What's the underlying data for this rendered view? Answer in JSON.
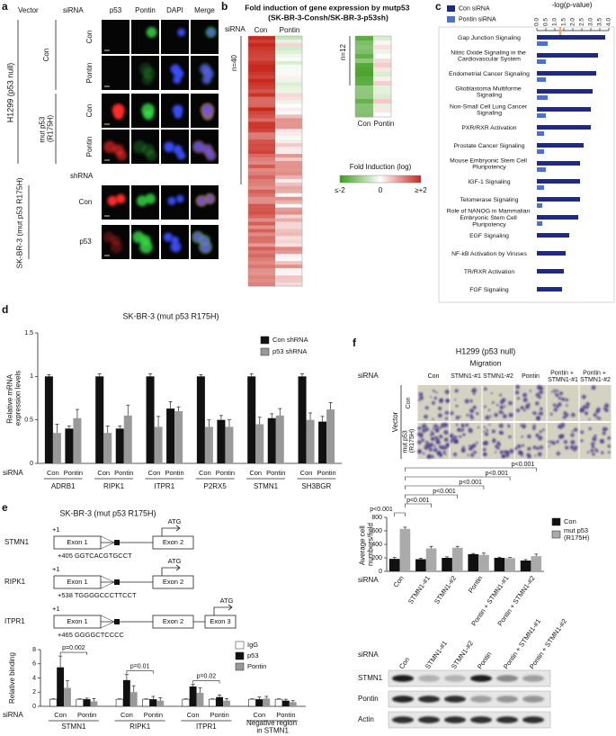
{
  "panel_a": {
    "letter": "a",
    "vector_label": "Vector",
    "sirna_label": "siRNA",
    "stains": [
      "p53",
      "Pontin",
      "DAPI",
      "Merge"
    ],
    "h1299": {
      "label": "H1299 (p53 null)",
      "vectors": [
        "Con",
        "mut p53 (R175H)"
      ],
      "sirna": [
        "Con",
        "Pontin",
        "Con",
        "Pontin"
      ]
    },
    "skbr3": {
      "label": "SK-BR-3 (mut p53 R175H)",
      "shrna_label": "shRNA",
      "shrna": [
        "Con",
        "p53"
      ]
    }
  },
  "panel_b": {
    "letter": "b",
    "title": "Fold induction of gene expression by mutp53 (SK-BR-3-Consh/SK-BR-3-p53sh)",
    "sirna_label": "siRNA",
    "columns": [
      "Con",
      "Pontin"
    ],
    "up_count": "n=40",
    "down_count": "n=12",
    "legend_title": "Fold Induction (log)",
    "legend_labels": [
      "≤-2",
      "0",
      "≥+2"
    ]
  },
  "chart_data": [
    {
      "type": "hbar",
      "letter": "c",
      "axis_title": "-log(p-value)",
      "categories": [
        "Gap Junction Signaling",
        "Nitric Oxide Signaling in the Cardiovascular System",
        "Endometrial Cancer Signaling",
        "Glioblastoma Multiforme Signaling",
        "Non-Small Cell Lung Cancer Signaling",
        "PXR/RXR Activation",
        "Prostate Cancer Signaling",
        "Mouse Embryonic Stem Cell Pluripotency",
        "IGF-1 Signaling",
        "Telomerase Signaling",
        "Role of NANOG in Mammalian Embryonic Stem Cell Pluripotency",
        "EGF Signaling",
        "NF-kB Activation by Viruses",
        "TR/RXR Activation",
        "FGF Signaling"
      ],
      "series": [
        {
          "name": "Con siRNA",
          "color": "#1f2a85",
          "values": [
            3.8,
            3.4,
            3.3,
            3.1,
            3.0,
            3.0,
            2.6,
            2.4,
            2.4,
            2.4,
            2.3,
            1.8,
            1.6,
            1.5,
            1.4
          ]
        },
        {
          "name": "Pontin siRNA",
          "color": "#4f72c9",
          "values": [
            0.6,
            0.5,
            0.5,
            0.6,
            0.5,
            0.4,
            0.4,
            0.5,
            0.4,
            0.3,
            0.3,
            null,
            null,
            null,
            null
          ]
        }
      ],
      "xlim": [
        0,
        4
      ],
      "xticks": [
        {
          "value": 0,
          "label": "0.0"
        },
        0.5,
        {
          "value": 1,
          "label": "1.0"
        },
        1.5,
        {
          "value": 2,
          "label": "2.0"
        },
        2.5,
        {
          "value": 3,
          "label": "3.0"
        },
        3.5,
        {
          "value": 4,
          "label": "4.0"
        }
      ],
      "threshold": 1.3,
      "threshold_color": "#f0a860"
    },
    {
      "type": "bar",
      "letter": "d",
      "title": "SK-BR-3 (mut p53 R175H)",
      "y_label": "Relative mRNA expression levels",
      "x_label": "siRNA",
      "categories": [
        "Con",
        "Pontin",
        "Con",
        "Pontin",
        "Con",
        "Pontin",
        "Con",
        "Pontin",
        "Con",
        "Pontin",
        "Con",
        "Pontin"
      ],
      "groups": [
        "ADRB1",
        "RIPK1",
        "ITPR1",
        "P2RX5",
        "STMN1",
        "SH3BGR"
      ],
      "series": [
        {
          "name": "Con shRNA",
          "color": "#111111",
          "values": [
            1,
            0.4,
            1,
            0.4,
            1,
            0.63,
            1,
            0.5,
            1,
            0.52,
            1,
            0.48
          ],
          "errors": [
            0.02,
            0.03,
            0.03,
            0.03,
            0.03,
            0.08,
            0.02,
            0.05,
            0.03,
            0.05,
            0.03,
            0.06
          ]
        },
        {
          "name": "p53 shRNA",
          "color": "#999999",
          "values": [
            0.35,
            0.52,
            0.35,
            0.55,
            0.42,
            0.6,
            0.42,
            0.42,
            0.45,
            0.55,
            0.5,
            0.62
          ],
          "errors": [
            0.1,
            0.1,
            0.08,
            0.12,
            0.12,
            0.05,
            0.08,
            0.08,
            0.08,
            0.08,
            0.08,
            0.08
          ]
        }
      ],
      "ylim": [
        0,
        1.5
      ],
      "yticks": [
        0,
        0.5,
        1,
        1.5
      ]
    },
    {
      "type": "bar",
      "y_label": "Relative binding",
      "x_label": "siRNA",
      "categories": [
        "Con",
        "Pontin",
        "Con",
        "Pontin",
        "Con",
        "Pontin",
        "Con",
        "Pontin"
      ],
      "groups": [
        "STMN1",
        "RIPK1",
        "ITPR1",
        "Negative region in STMN1"
      ],
      "series": [
        {
          "name": "IgG",
          "color": "#ffffff",
          "values": [
            1,
            1,
            1,
            1,
            1,
            1,
            1,
            1
          ],
          "errors": [
            0.05,
            0.05,
            0.05,
            0.05,
            0.05,
            0.05,
            0.05,
            0.05
          ]
        },
        {
          "name": "p53",
          "color": "#111111",
          "values": [
            5.5,
            1.0,
            3.7,
            1.0,
            2.8,
            1.3,
            1.0,
            0.8
          ],
          "errors": [
            1.6,
            0.15,
            0.8,
            0.4,
            0.3,
            0.3,
            0.3,
            0.2
          ]
        },
        {
          "name": "Pontin",
          "color": "#999999",
          "values": [
            2.6,
            0.7,
            2.0,
            0.8,
            1.9,
            0.8,
            1.1,
            0.6
          ],
          "errors": [
            1.0,
            0.4,
            0.9,
            0.4,
            0.7,
            0.3,
            0.3,
            0.2
          ]
        }
      ],
      "ylim": [
        0,
        8
      ],
      "yticks": [
        0,
        2,
        4,
        6,
        8
      ],
      "annotations": [
        "p=0.002",
        "p=0.01",
        "p=0.02"
      ]
    },
    {
      "type": "bar",
      "y_label": "Average cell numbers/field",
      "x_label": "siRNA",
      "categories": [
        "Con",
        "STMN1-#1",
        "STMN1-#2",
        "Pontin",
        "Pontin + STMN1-#1",
        "Pontin + STMN1-#2"
      ],
      "series": [
        {
          "name": "Con",
          "color": "#111111",
          "values": [
            185,
            180,
            200,
            255,
            200,
            160
          ],
          "errors": [
            20,
            15,
            15,
            10,
            10,
            15
          ]
        },
        {
          "name": "mut p53 (R175H)",
          "color": "#aaaaaa",
          "values": [
            630,
            340,
            350,
            245,
            195,
            225
          ],
          "errors": [
            25,
            30,
            20,
            25,
            10,
            30
          ]
        }
      ],
      "ylim": [
        0,
        800
      ],
      "yticks": [
        0,
        200,
        400,
        600,
        800
      ],
      "annotations": [
        "p<0.001",
        "p<0.001",
        "p<0.001",
        "p<0.001",
        "p<0.001",
        "p<0.001"
      ]
    }
  ],
  "panel_e": {
    "letter": "e",
    "title": "SK-BR-3 (mut p53 R175H)",
    "genes": [
      {
        "name": "STMN1",
        "start": "+1",
        "exons": [
          "Exon 1",
          "Exon 2"
        ],
        "atg": "ATG",
        "site": "+405 GGTCACGTGCCT"
      },
      {
        "name": "RIPK1",
        "start": "+1",
        "exons": [
          "Exon 1",
          "Exon 2"
        ],
        "atg": "ATG",
        "site": "+538 TGGGGCCCTTCCT"
      },
      {
        "name": "ITPR1",
        "start": "+1",
        "exons": [
          "Exon 1",
          "Exon 2",
          "Exon 3"
        ],
        "atg": "ATG",
        "site": "+465 GGGGCTCCCC"
      }
    ]
  },
  "panel_f": {
    "letter": "f",
    "title": "H1299 (p53 null)",
    "subtitle": "Migration",
    "sirna_label": "siRNA",
    "columns": [
      "Con",
      "STMN1-#1",
      "STMN1-#2",
      "Pontin",
      "Pontin + STMN1-#1",
      "Pontin + STMN1-#2"
    ],
    "rows": [
      "Con",
      "mut p53 (R175H)"
    ],
    "vector_label": "Vector",
    "blot": {
      "sirna_label": "siRNA",
      "lanes": [
        "Con",
        "STMN1-#1",
        "STMN1-#2",
        "Pontin",
        "Pontin + STMN1-#1",
        "Pontin + STMN1-#2"
      ],
      "proteins": [
        "STMN1",
        "Pontin",
        "Actin"
      ]
    }
  }
}
